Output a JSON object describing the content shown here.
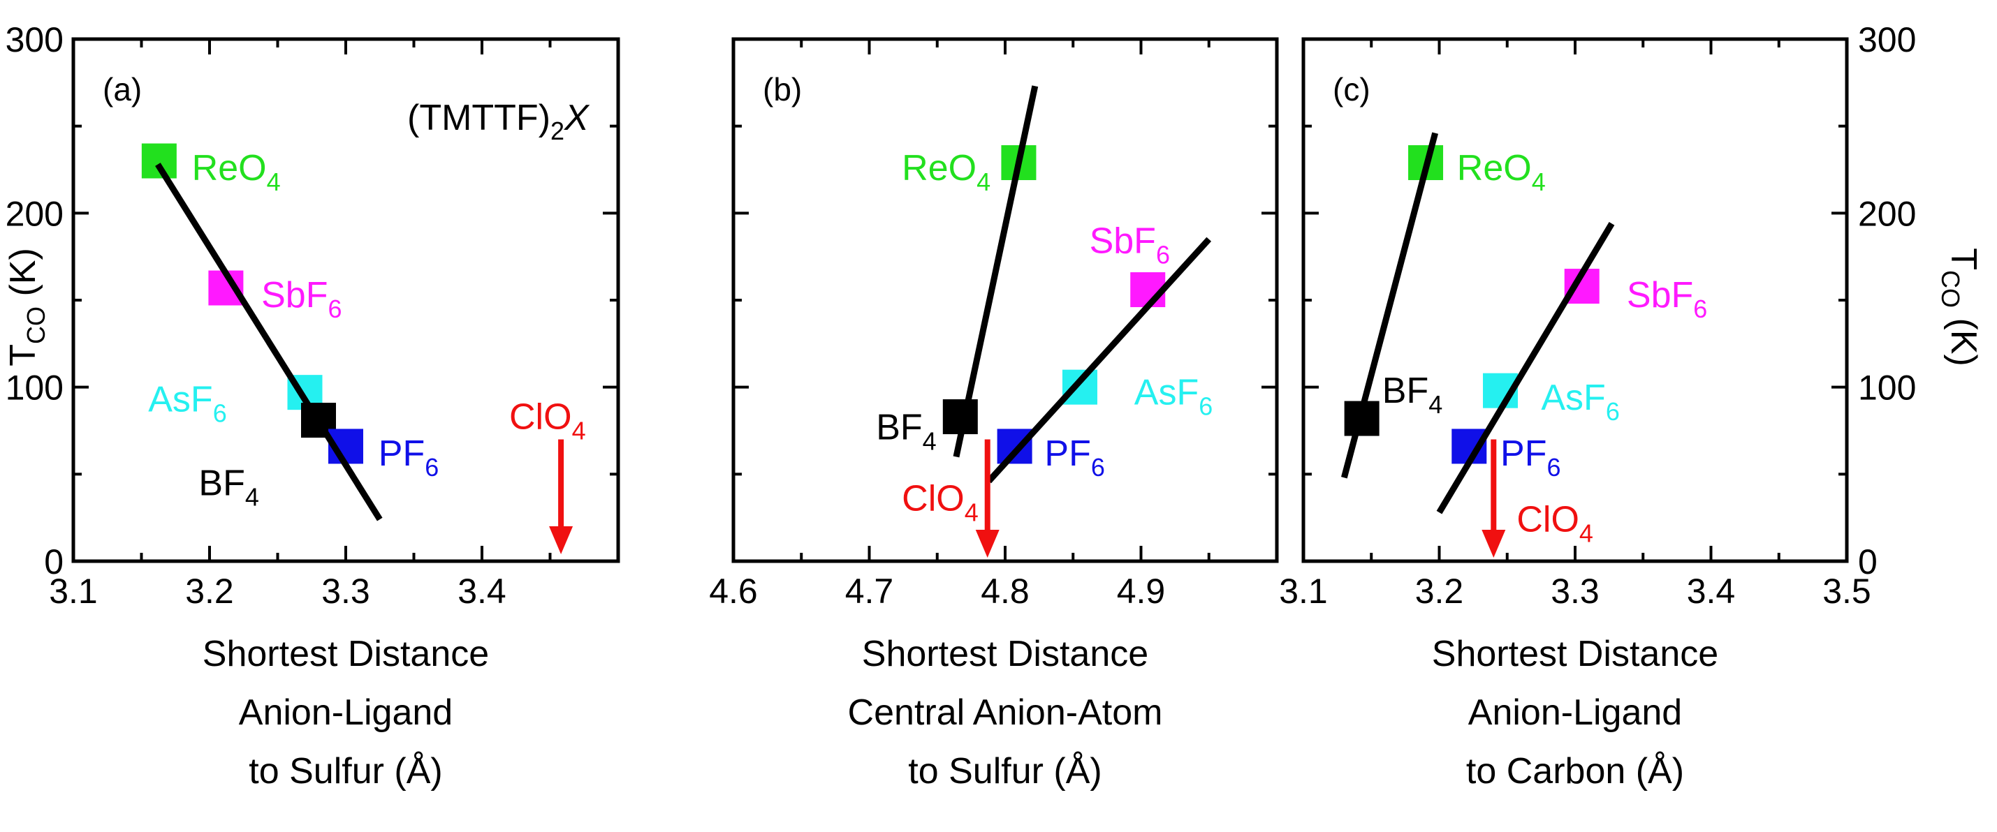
{
  "chart_data": [
    {
      "type": "scatter",
      "panel_label": "(a)",
      "title": "(TMTTF)",
      "title_subscript": "2",
      "title_suffix": "X",
      "xlabel": [
        "Shortest Distance",
        "Anion-Ligand",
        "to Sulfur (Å)"
      ],
      "ylabel": "T",
      "ylabel_subscript": "CO",
      "ylabel_unit": " (K)",
      "xlim": [
        3.1,
        3.5
      ],
      "ylim": [
        0,
        300
      ],
      "xticks": [
        3.1,
        3.2,
        3.3,
        3.4
      ],
      "xtick_labels": [
        "3.1",
        "3.2",
        "3.3",
        "3.4"
      ],
      "yticks": [
        0,
        100,
        200,
        300
      ],
      "ytick_labels": [
        "0",
        "100",
        "200",
        "300"
      ],
      "points": [
        {
          "name": "ReO",
          "sub": "4",
          "x": 3.163,
          "y": 230,
          "color": "#22e01e"
        },
        {
          "name": "SbF",
          "sub": "6",
          "x": 3.212,
          "y": 157,
          "color": "#ff19ff"
        },
        {
          "name": "AsF",
          "sub": "6",
          "x": 3.27,
          "y": 97,
          "color": "#25f0f0"
        },
        {
          "name": "BF",
          "sub": "4",
          "x": 3.28,
          "y": 81,
          "color": "#000000"
        },
        {
          "name": "PF",
          "sub": "6",
          "x": 3.3,
          "y": 66,
          "color": "#1010e8"
        }
      ],
      "labels": [
        {
          "name": "ReO",
          "sub": "4",
          "x": 3.187,
          "y": 219,
          "color": "#22e01e"
        },
        {
          "name": "SbF",
          "sub": "6",
          "x": 3.238,
          "y": 146,
          "color": "#ff19ff"
        },
        {
          "name": "AsF",
          "sub": "6",
          "x": 3.155,
          "y": 86,
          "color": "#25f0f0"
        },
        {
          "name": "BF",
          "sub": "4",
          "x": 3.192,
          "y": 38,
          "color": "#000000"
        },
        {
          "name": "PF",
          "sub": "6",
          "x": 3.324,
          "y": 55,
          "color": "#1010e8"
        },
        {
          "name": "ClO",
          "sub": "4",
          "x": 3.42,
          "y": 76,
          "color": "#f01010"
        }
      ],
      "fit_lines": [
        {
          "x1": 3.162,
          "y1": 228,
          "x2": 3.325,
          "y2": 24
        }
      ],
      "arrows": [
        {
          "label": "ClO4",
          "x": 3.458,
          "y_start": 70,
          "y_end": 4,
          "color": "#f01010"
        }
      ],
      "left_axis_visible": true,
      "right_axis_visible": false
    },
    {
      "type": "scatter",
      "panel_label": "(b)",
      "xlabel": [
        "Shortest Distance",
        "Central Anion-Atom",
        "to Sulfur (Å)"
      ],
      "xlim": [
        4.6,
        5.0
      ],
      "ylim": [
        0,
        300
      ],
      "xticks": [
        4.6,
        4.7,
        4.8,
        4.9
      ],
      "xtick_labels": [
        "4.6",
        "4.7",
        "4.8",
        "4.9"
      ],
      "yticks": [
        0,
        100,
        200,
        300
      ],
      "points": [
        {
          "name": "ReO",
          "sub": "4",
          "x": 4.81,
          "y": 229,
          "color": "#22e01e"
        },
        {
          "name": "SbF",
          "sub": "6",
          "x": 4.905,
          "y": 156,
          "color": "#ff19ff"
        },
        {
          "name": "AsF",
          "sub": "6",
          "x": 4.855,
          "y": 100,
          "color": "#25f0f0"
        },
        {
          "name": "BF",
          "sub": "4",
          "x": 4.767,
          "y": 83,
          "color": "#000000"
        },
        {
          "name": "PF",
          "sub": "6",
          "x": 4.807,
          "y": 66,
          "color": "#1010e8"
        }
      ],
      "labels": [
        {
          "name": "ReO",
          "sub": "4",
          "x": 4.724,
          "y": 219,
          "color": "#22e01e"
        },
        {
          "name": "SbF",
          "sub": "6",
          "x": 4.862,
          "y": 177,
          "color": "#ff19ff"
        },
        {
          "name": "AsF",
          "sub": "6",
          "x": 4.895,
          "y": 90,
          "color": "#25f0f0"
        },
        {
          "name": "BF",
          "sub": "4",
          "x": 4.705,
          "y": 70,
          "color": "#000000"
        },
        {
          "name": "PF",
          "sub": "6",
          "x": 4.829,
          "y": 55,
          "color": "#1010e8"
        },
        {
          "name": "ClO",
          "sub": "4",
          "x": 4.724,
          "y": 29,
          "color": "#f01010"
        }
      ],
      "fit_lines": [
        {
          "x1": 4.764,
          "y1": 60,
          "x2": 4.822,
          "y2": 273
        },
        {
          "x1": 4.788,
          "y1": 46,
          "x2": 4.95,
          "y2": 185
        }
      ],
      "arrows": [
        {
          "label": "ClO4",
          "x": 4.787,
          "y_start": 70,
          "y_end": 2,
          "color": "#f01010"
        }
      ],
      "left_axis_visible": false,
      "right_axis_visible": false
    },
    {
      "type": "scatter",
      "panel_label": "(c)",
      "xlabel": [
        "Shortest Distance",
        "Anion-Ligand",
        "to Carbon (Å)"
      ],
      "ylabel": "T",
      "ylabel_subscript": "CO",
      "ylabel_unit": " (K)",
      "xlim": [
        3.1,
        3.5
      ],
      "ylim": [
        0,
        300
      ],
      "xticks": [
        3.1,
        3.2,
        3.3,
        3.4,
        3.5
      ],
      "xtick_labels": [
        "3.1",
        "3.2",
        "3.3",
        "3.4",
        "3.5"
      ],
      "yticks": [
        0,
        100,
        200,
        300
      ],
      "ytick_labels": [
        "0",
        "100",
        "200",
        "300"
      ],
      "points": [
        {
          "name": "ReO",
          "sub": "4",
          "x": 3.19,
          "y": 229,
          "color": "#22e01e"
        },
        {
          "name": "SbF",
          "sub": "6",
          "x": 3.305,
          "y": 158,
          "color": "#ff19ff"
        },
        {
          "name": "AsF",
          "sub": "6",
          "x": 3.245,
          "y": 98,
          "color": "#25f0f0"
        },
        {
          "name": "BF",
          "sub": "4",
          "x": 3.143,
          "y": 82,
          "color": "#000000"
        },
        {
          "name": "PF",
          "sub": "6",
          "x": 3.222,
          "y": 66,
          "color": "#1010e8"
        }
      ],
      "labels": [
        {
          "name": "ReO",
          "sub": "4",
          "x": 3.213,
          "y": 219,
          "color": "#22e01e"
        },
        {
          "name": "SbF",
          "sub": "6",
          "x": 3.338,
          "y": 146,
          "color": "#ff19ff"
        },
        {
          "name": "AsF",
          "sub": "6",
          "x": 3.275,
          "y": 87,
          "color": "#25f0f0"
        },
        {
          "name": "BF",
          "sub": "4",
          "x": 3.158,
          "y": 91,
          "color": "#000000"
        },
        {
          "name": "PF",
          "sub": "6",
          "x": 3.245,
          "y": 55,
          "color": "#1010e8"
        },
        {
          "name": "ClO",
          "sub": "4",
          "x": 3.257,
          "y": 17,
          "color": "#f01010"
        }
      ],
      "fit_lines": [
        {
          "x1": 3.13,
          "y1": 48,
          "x2": 3.197,
          "y2": 246
        },
        {
          "x1": 3.2,
          "y1": 28,
          "x2": 3.327,
          "y2": 194
        }
      ],
      "arrows": [
        {
          "label": "ClO4",
          "x": 3.24,
          "y_start": 70,
          "y_end": 2,
          "color": "#f01010"
        }
      ],
      "left_axis_visible": false,
      "right_axis_visible": true
    }
  ]
}
